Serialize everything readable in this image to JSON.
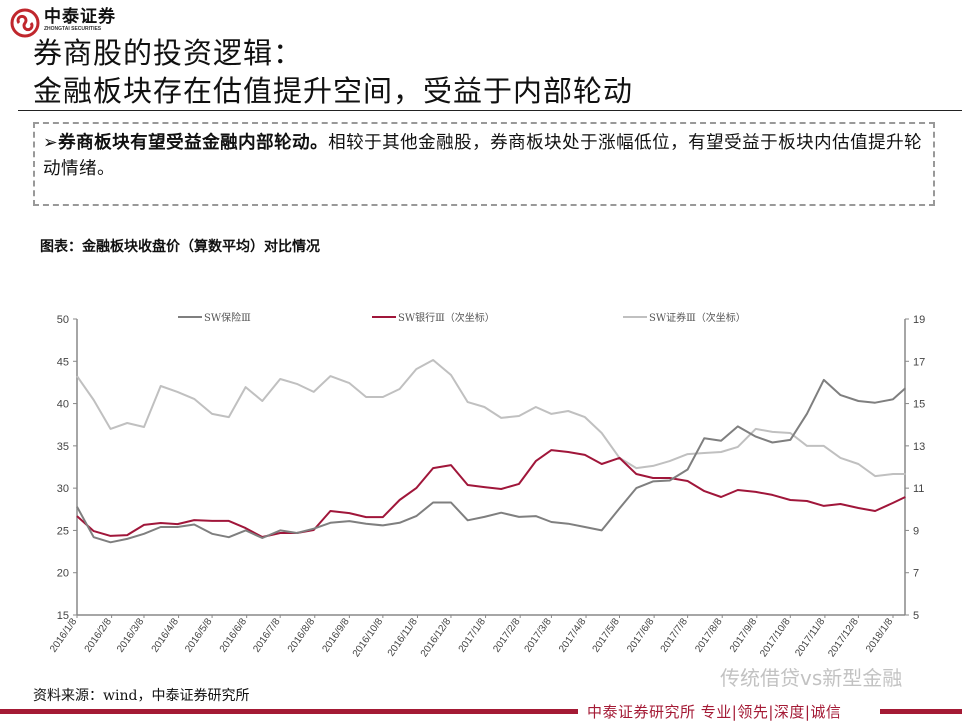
{
  "logo": {
    "cn": "中泰证券",
    "en": "ZHONGTAI SECURITIES",
    "color": "#c0272d"
  },
  "title": {
    "line1": "券商股的投资逻辑：",
    "line2": "金融板块存在估值提升空间，受益于内部轮动"
  },
  "summary": {
    "bullet": "➢",
    "bold": "券商板块有望受益金融内部轮动。",
    "text": "相较于其他金融股，券商板块处于涨幅低位，有望受益于板块内估值提升轮动情绪。"
  },
  "caption": "图表：金融板块收盘价（算数平均）对比情况",
  "source": "资料来源：wind，中泰证券研究所",
  "footer": {
    "text": "中泰证券研究所 专业|领先|深度|诚信",
    "color": "#a41a35"
  },
  "watermark": "传统借贷vs新型金融",
  "chart_data": {
    "type": "line",
    "title": "",
    "legend_position": "top",
    "grid": false,
    "x_tick_labels": [
      "2016/1/8",
      "2016/2/8",
      "2016/3/8",
      "2016/4/8",
      "2016/5/8",
      "2016/6/8",
      "2016/7/8",
      "2016/8/8",
      "2016/9/8",
      "2016/10/8",
      "2016/11/8",
      "2016/12/8",
      "2017/1/8",
      "2017/2/8",
      "2017/3/8",
      "2017/4/8",
      "2017/5/8",
      "2017/6/8",
      "2017/7/8",
      "2017/8/8",
      "2017/9/8",
      "2017/10/8",
      "2017/11/8",
      "2017/12/8",
      "2018/1/8"
    ],
    "x": [
      "2016-01-08",
      "2016-01-23",
      "2016-02-07",
      "2016-02-22",
      "2016-03-08",
      "2016-03-23",
      "2016-04-07",
      "2016-04-22",
      "2016-05-08",
      "2016-05-23",
      "2016-06-07",
      "2016-06-22",
      "2016-07-08",
      "2016-07-23",
      "2016-08-07",
      "2016-08-22",
      "2016-09-08",
      "2016-09-23",
      "2016-10-08",
      "2016-10-23",
      "2016-11-07",
      "2016-11-22",
      "2016-12-08",
      "2016-12-23",
      "2017-01-07",
      "2017-01-22",
      "2017-02-07",
      "2017-02-22",
      "2017-03-08",
      "2017-03-23",
      "2017-04-07",
      "2017-04-22",
      "2017-05-08",
      "2017-05-23",
      "2017-06-07",
      "2017-06-22",
      "2017-07-08",
      "2017-07-23",
      "2017-08-07",
      "2017-08-22",
      "2017-09-07",
      "2017-09-22",
      "2017-10-08",
      "2017-10-23",
      "2017-11-07",
      "2017-11-22",
      "2017-12-08",
      "2017-12-23",
      "2018-01-08",
      "2018-01-19"
    ],
    "y_left": {
      "min": 15,
      "max": 50,
      "ticks": [
        15,
        20,
        25,
        30,
        35,
        40,
        45,
        50
      ]
    },
    "y_right": {
      "min": 5,
      "max": 19,
      "ticks": [
        5,
        7,
        9,
        11,
        13,
        15,
        17,
        19
      ]
    },
    "series": [
      {
        "name": "SW保险Ⅲ",
        "axis": "left",
        "color": "#7f7f7f",
        "values": [
          27.8,
          24.2,
          23.6,
          24.0,
          24.6,
          25.4,
          25.4,
          25.7,
          24.6,
          24.2,
          25.0,
          24.1,
          25.0,
          24.7,
          25.2,
          25.9,
          26.1,
          25.8,
          25.6,
          25.9,
          26.7,
          28.3,
          28.3,
          26.2,
          26.6,
          27.1,
          26.6,
          26.7,
          26.0,
          25.8,
          25.4,
          25.0,
          27.6,
          30.0,
          30.8,
          30.9,
          32.2,
          35.9,
          35.6,
          37.3,
          36.1,
          35.4,
          35.7,
          38.8,
          42.8,
          41.0,
          40.3,
          40.1,
          40.5,
          41.8
        ]
      },
      {
        "name": "SW银行Ⅲ（次坐标）",
        "axis": "right",
        "color": "#a0163a",
        "values": [
          9.68,
          8.97,
          8.74,
          8.78,
          9.26,
          9.35,
          9.3,
          9.49,
          9.45,
          9.45,
          9.11,
          8.69,
          8.88,
          8.88,
          9.02,
          9.92,
          9.82,
          9.63,
          9.63,
          10.44,
          11.0,
          11.95,
          12.09,
          11.15,
          11.05,
          10.96,
          11.2,
          12.28,
          12.8,
          12.71,
          12.57,
          12.14,
          12.43,
          11.67,
          11.48,
          11.48,
          11.34,
          10.86,
          10.58,
          10.91,
          10.82,
          10.68,
          10.44,
          10.39,
          10.16,
          10.25,
          10.06,
          9.92,
          10.3,
          10.58
        ]
      },
      {
        "name": "SW证券Ⅲ（次坐标）",
        "axis": "right",
        "color": "#c0c0c0",
        "values": [
          16.3,
          15.17,
          13.8,
          14.08,
          13.89,
          15.83,
          15.55,
          15.22,
          14.51,
          14.36,
          15.78,
          15.12,
          16.16,
          15.93,
          15.55,
          16.3,
          15.97,
          15.31,
          15.31,
          15.69,
          16.63,
          17.06,
          16.35,
          15.07,
          14.84,
          14.32,
          14.41,
          14.84,
          14.51,
          14.65,
          14.36,
          13.61,
          12.43,
          11.95,
          12.05,
          12.28,
          12.61,
          12.66,
          12.71,
          12.95,
          13.8,
          13.66,
          13.61,
          13.0,
          13.0,
          12.43,
          12.14,
          11.57,
          11.67,
          11.67
        ]
      }
    ]
  }
}
